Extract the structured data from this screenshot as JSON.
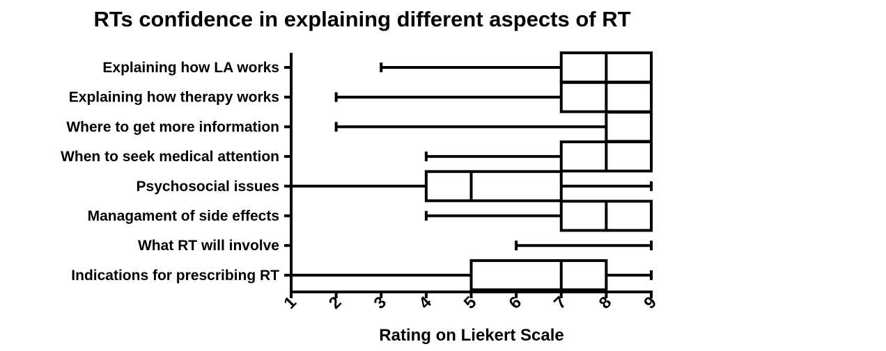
{
  "chart_data": {
    "type": "boxplot",
    "orientation": "horizontal",
    "title": "RTs confidence in explaining different aspects of RT",
    "xlabel": "Rating on Liekert Scale",
    "ylabel": "",
    "xlim": [
      1,
      9
    ],
    "x_ticks": [
      "1",
      "2",
      "3",
      "4",
      "5",
      "6",
      "7",
      "8",
      "9"
    ],
    "grid": false,
    "legend": "none",
    "colors": {
      "stroke": "#000000",
      "box_fill": "#ffffff",
      "background": "#ffffff"
    },
    "categories": [
      "Explaining how LA works",
      "Explaining how therapy works",
      "Where to get more information",
      "When to seek medical attention",
      "Psychosocial issues",
      "Managament of side effects",
      "What RT will involve",
      "Indications for prescribing RT"
    ],
    "boxes": [
      {
        "min": 3,
        "q1": 7,
        "median": 8,
        "q3": 9,
        "max": 9
      },
      {
        "min": 2,
        "q1": 7,
        "median": 8,
        "q3": 9,
        "max": 9
      },
      {
        "min": 2,
        "q1": 8,
        "median": 9,
        "q3": 9,
        "max": 9
      },
      {
        "min": 4,
        "q1": 7,
        "median": 8,
        "q3": 9,
        "max": 9
      },
      {
        "min": 1,
        "q1": 4,
        "median": 5,
        "q3": 7,
        "max": 9
      },
      {
        "min": 4,
        "q1": 7,
        "median": 8,
        "q3": 9,
        "max": 9
      },
      {
        "min": 6,
        "q1": 9,
        "median": 9,
        "q3": 9,
        "max": 9
      },
      {
        "min": 1,
        "q1": 5,
        "median": 7,
        "q3": 8,
        "max": 9
      }
    ]
  }
}
